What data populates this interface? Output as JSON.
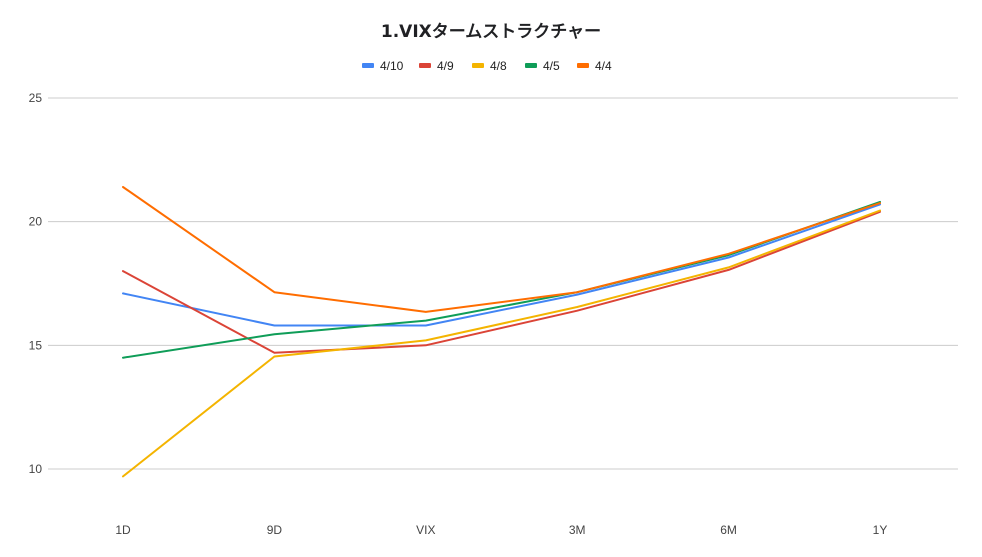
{
  "chart_data": {
    "type": "line",
    "title": "1.VIXタームストラクチャー",
    "xlabel": "",
    "ylabel": "",
    "categories": [
      "1D",
      "9D",
      "VIX",
      "3M",
      "6M",
      "1Y"
    ],
    "ylim": [
      10,
      25
    ],
    "yticks": [
      10,
      15,
      20,
      25
    ],
    "grid": true,
    "legend_position": "top",
    "series": [
      {
        "name": "4/10",
        "color": "#4285f4",
        "values": [
          17.1,
          15.8,
          15.8,
          17.05,
          18.55,
          20.7
        ]
      },
      {
        "name": "4/9",
        "color": "#db4437",
        "values": [
          18.0,
          14.7,
          15.0,
          16.4,
          18.05,
          20.4
        ]
      },
      {
        "name": "4/8",
        "color": "#f4b400",
        "values": [
          9.7,
          14.55,
          15.2,
          16.55,
          18.15,
          20.45
        ]
      },
      {
        "name": "4/5",
        "color": "#0f9d58",
        "values": [
          14.5,
          15.45,
          16.0,
          17.15,
          18.65,
          20.8
        ]
      },
      {
        "name": "4/4",
        "color": "#ff6d00",
        "values": [
          21.4,
          17.15,
          16.35,
          17.15,
          18.7,
          20.75
        ]
      }
    ]
  }
}
